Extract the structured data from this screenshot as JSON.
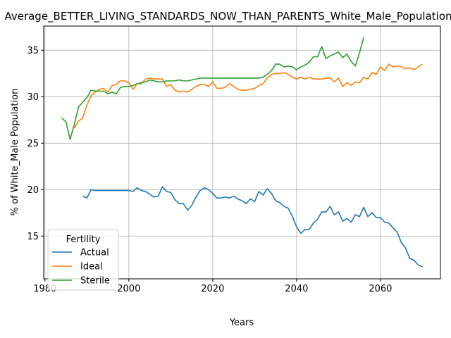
{
  "chart_data": {
    "type": "line",
    "title": "Average_BETTER_LIVING_STANDARDS_NOW_THAN_PARENTS_White_Male_Population",
    "xlabel": "Years",
    "ylabel": "% of White_Male Population",
    "xlim": [
      1979.7,
      2074.3
    ],
    "ylim": [
      10.4,
      37.6
    ],
    "xticks": [
      1980,
      2000,
      2020,
      2040,
      2060
    ],
    "yticks": [
      15,
      20,
      25,
      30,
      35
    ],
    "grid": true,
    "legend": {
      "title": "Fertility",
      "placement": "lower-left"
    },
    "series": [
      {
        "name": "Actual",
        "color": "#1f77b4",
        "x": [
          1989,
          1990,
          1991,
          1992,
          1993,
          1994,
          1995,
          1996,
          1997,
          1998,
          1999,
          2000,
          2001,
          2002,
          2003,
          2004,
          2005,
          2006,
          2007,
          2008,
          2009,
          2010,
          2011,
          2012,
          2013,
          2014,
          2015,
          2016,
          2017,
          2018,
          2019,
          2020,
          2021,
          2022,
          2023,
          2024,
          2025,
          2026,
          2027,
          2028,
          2029,
          2030,
          2031,
          2032,
          2033,
          2034,
          2035,
          2036,
          2037,
          2038,
          2039,
          2040,
          2041,
          2042,
          2043,
          2044,
          2045,
          2046,
          2047,
          2048,
          2049,
          2050,
          2051,
          2052,
          2053,
          2054,
          2055,
          2056,
          2057,
          2058,
          2059,
          2060,
          2061,
          2062,
          2063,
          2064,
          2065,
          2066,
          2067,
          2068,
          2069,
          2070
        ],
        "y": [
          19.3,
          19.1,
          20.0,
          19.9,
          19.9,
          19.9,
          19.9,
          19.9,
          19.9,
          19.9,
          19.9,
          19.9,
          19.8,
          20.2,
          19.9,
          19.8,
          19.5,
          19.2,
          19.3,
          20.3,
          19.8,
          19.7,
          18.9,
          18.5,
          18.5,
          17.8,
          18.3,
          19.2,
          19.9,
          20.2,
          20.0,
          19.6,
          19.1,
          19.1,
          19.2,
          19.1,
          19.3,
          19.0,
          18.8,
          18.5,
          19.0,
          18.7,
          19.8,
          19.4,
          20.1,
          19.6,
          18.8,
          18.6,
          18.2,
          18.0,
          17.1,
          16.0,
          15.3,
          15.7,
          15.7,
          16.4,
          16.8,
          17.6,
          17.6,
          18.2,
          17.3,
          17.6,
          16.6,
          16.9,
          16.5,
          17.3,
          17.1,
          18.1,
          17.1,
          17.5,
          17.0,
          17.0,
          16.5,
          16.4,
          15.9,
          15.4,
          14.3,
          13.7,
          12.6,
          12.4,
          11.9,
          11.7
        ]
      },
      {
        "name": "Ideal",
        "color": "#ff7f0e",
        "x": [
          1987,
          1988,
          1989,
          1990,
          1991,
          1992,
          1993,
          1994,
          1995,
          1996,
          1997,
          1998,
          1999,
          2000,
          2001,
          2002,
          2003,
          2004,
          2005,
          2006,
          2007,
          2008,
          2009,
          2010,
          2011,
          2012,
          2013,
          2014,
          2015,
          2016,
          2017,
          2018,
          2019,
          2020,
          2021,
          2022,
          2023,
          2024,
          2025,
          2026,
          2027,
          2028,
          2029,
          2030,
          2031,
          2032,
          2033,
          2034,
          2035,
          2036,
          2037,
          2038,
          2039,
          2040,
          2041,
          2042,
          2043,
          2044,
          2045,
          2046,
          2047,
          2048,
          2049,
          2050,
          2051,
          2052,
          2053,
          2054,
          2055,
          2056,
          2057,
          2058,
          2059,
          2060,
          2061,
          2062,
          2063,
          2064,
          2065,
          2066,
          2067,
          2068,
          2069,
          2070
        ],
        "y": [
          26.6,
          27.4,
          27.7,
          29.1,
          30.1,
          30.5,
          30.8,
          30.9,
          30.5,
          31.2,
          31.3,
          31.7,
          31.7,
          31.5,
          30.8,
          31.4,
          31.4,
          31.9,
          32.0,
          31.9,
          31.9,
          31.9,
          31.1,
          31.3,
          30.7,
          30.5,
          30.6,
          30.5,
          30.8,
          31.1,
          31.3,
          31.3,
          31.1,
          31.6,
          30.9,
          30.9,
          31.0,
          31.4,
          31.1,
          30.8,
          30.7,
          30.7,
          30.8,
          30.9,
          31.2,
          31.4,
          32.0,
          32.4,
          32.5,
          32.5,
          32.6,
          32.4,
          32.1,
          31.9,
          32.1,
          31.9,
          32.1,
          31.9,
          31.9,
          31.9,
          32.0,
          32.0,
          31.6,
          32.0,
          31.1,
          31.5,
          31.2,
          31.6,
          31.5,
          32.1,
          31.9,
          32.6,
          32.4,
          33.2,
          32.8,
          33.5,
          33.2,
          33.3,
          33.2,
          33.0,
          33.1,
          32.9,
          33.2,
          33.5
        ]
      },
      {
        "name": "Sterile",
        "color": "#2ca02c",
        "x": [
          1984,
          1985,
          1986,
          1987,
          1988,
          1989,
          1990,
          1991,
          1992,
          1993,
          1994,
          1995,
          1996,
          1997,
          1998,
          1999,
          2000,
          2001,
          2002,
          2003,
          2004,
          2005,
          2006,
          2007,
          2008,
          2009,
          2010,
          2011,
          2012,
          2013,
          2014,
          2015,
          2016,
          2017,
          2018,
          2019,
          2020,
          2021,
          2022,
          2023,
          2024,
          2025,
          2026,
          2027,
          2028,
          2029,
          2030,
          2031,
          2032,
          2033,
          2034,
          2035,
          2036,
          2037,
          2038,
          2039,
          2040,
          2041,
          2042,
          2043,
          2044,
          2045,
          2046,
          2047,
          2048,
          2049,
          2050,
          2051,
          2052,
          2053,
          2054,
          2055,
          2056
        ],
        "y": [
          27.7,
          27.3,
          25.4,
          27.0,
          28.9,
          29.4,
          29.9,
          30.7,
          30.6,
          30.6,
          30.6,
          30.3,
          30.5,
          30.3,
          31.0,
          31.1,
          31.1,
          31.2,
          31.4,
          31.5,
          31.6,
          31.8,
          31.7,
          31.6,
          31.6,
          31.7,
          31.7,
          31.7,
          31.8,
          31.7,
          31.7,
          31.8,
          31.9,
          32.0,
          32.0,
          32.0,
          32.0,
          32.0,
          32.0,
          32.0,
          32.0,
          32.0,
          32.0,
          32.0,
          32.0,
          32.0,
          32.0,
          32.0,
          32.1,
          32.4,
          32.8,
          33.5,
          33.5,
          33.2,
          33.3,
          33.2,
          32.9,
          33.2,
          33.4,
          33.7,
          34.3,
          34.3,
          35.4,
          34.1,
          34.4,
          34.6,
          34.8,
          34.2,
          34.6,
          33.8,
          33.3,
          34.7,
          36.4
        ]
      }
    ]
  }
}
